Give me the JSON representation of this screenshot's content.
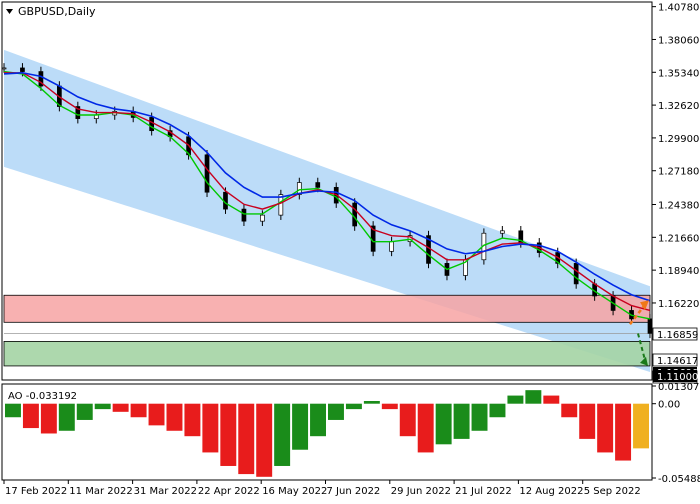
{
  "chart_title": "GBPUSD,Daily",
  "main_price_ticks": [
    "1.40780",
    "1.38060",
    "1.35340",
    "1.32620",
    "1.29900",
    "1.27180",
    "1.24380",
    "1.21660",
    "1.18940",
    "1.16220"
  ],
  "level_labels": {
    "upper": "1.16859",
    "mid": "1.14617",
    "current": "1.13690",
    "lower": "1.13033",
    "target": "1.11000"
  },
  "ao_label": "AO -0.033192",
  "ao_ticks": [
    "0.013076",
    "0.00",
    "-0.054887"
  ],
  "date_labels": [
    "17 Feb 2022",
    "11 Mar 2022",
    "31 Mar 2022",
    "22 Apr 2022",
    "16 May 2022",
    "7 Jun 2022",
    "29 Jun 2022",
    "21 Jul 2022",
    "12 Aug 2022",
    "5 Sep 2022"
  ],
  "colors": {
    "channel": "#bcdcf8",
    "resistance_zone": "#f7a3a3",
    "support_zone": "#a4d4a4",
    "ma_fast": "#00c800",
    "ma_mid": "#c8001e",
    "ma_slow": "#0028e6",
    "ao_up": "#1a8c1a",
    "ao_down": "#e81c1c",
    "ao_last": "#f0b020",
    "price_label_bg": "#000000",
    "axis": "#000000"
  },
  "chart_data": {
    "type": "line",
    "symbol": "GBPUSD",
    "timeframe": "Daily",
    "x_labels": [
      "17 Feb 2022",
      "11 Mar 2022",
      "31 Mar 2022",
      "22 Apr 2022",
      "16 May 2022",
      "7 Jun 2022",
      "29 Jun 2022",
      "21 Jul 2022",
      "12 Aug 2022",
      "5 Sep 2022"
    ],
    "y_range": [
      1.1,
      1.41
    ],
    "price_points": [
      1.357,
      1.354,
      1.342,
      1.325,
      1.315,
      1.318,
      1.321,
      1.316,
      1.305,
      1.3,
      1.285,
      1.254,
      1.24,
      1.23,
      1.235,
      1.252,
      1.262,
      1.258,
      1.245,
      1.226,
      1.205,
      1.213,
      1.218,
      1.195,
      1.185,
      1.198,
      1.22,
      1.222,
      1.212,
      1.204,
      1.195,
      1.178,
      1.168,
      1.156,
      1.149,
      1.137
    ],
    "series": [
      {
        "name": "fast MA",
        "values": [
          1.354,
          1.352,
          1.34,
          1.326,
          1.318,
          1.318,
          1.32,
          1.318,
          1.308,
          1.3,
          1.286,
          1.262,
          1.245,
          1.236,
          1.236,
          1.246,
          1.256,
          1.257,
          1.25,
          1.233,
          1.213,
          1.213,
          1.215,
          1.202,
          1.19,
          1.196,
          1.21,
          1.216,
          1.214,
          1.206,
          1.196,
          1.183,
          1.172,
          1.162,
          1.152,
          1.149
        ]
      },
      {
        "name": "mid MA",
        "values": [
          1.353,
          1.353,
          1.345,
          1.333,
          1.323,
          1.32,
          1.32,
          1.319,
          1.312,
          1.304,
          1.293,
          1.273,
          1.255,
          1.244,
          1.24,
          1.245,
          1.253,
          1.256,
          1.252,
          1.24,
          1.223,
          1.218,
          1.217,
          1.208,
          1.198,
          1.198,
          1.205,
          1.211,
          1.212,
          1.208,
          1.2,
          1.189,
          1.178,
          1.168,
          1.16,
          1.156
        ]
      },
      {
        "name": "slow MA",
        "values": [
          1.352,
          1.353,
          1.35,
          1.342,
          1.333,
          1.327,
          1.323,
          1.321,
          1.317,
          1.31,
          1.301,
          1.287,
          1.27,
          1.258,
          1.25,
          1.25,
          1.253,
          1.255,
          1.254,
          1.247,
          1.235,
          1.227,
          1.222,
          1.215,
          1.207,
          1.203,
          1.205,
          1.209,
          1.211,
          1.21,
          1.205,
          1.196,
          1.186,
          1.177,
          1.169,
          1.164
        ]
      }
    ],
    "channel": {
      "upper": [
        1.372,
        1.176
      ],
      "lower": [
        1.275,
        1.105
      ]
    },
    "levels": [
      1.16859,
      1.14617,
      1.1369,
      1.13033,
      1.11
    ],
    "ao": {
      "title": "AO -0.033192",
      "y_range": [
        -0.054887,
        0.013076
      ],
      "values": [
        -0.01,
        -0.018,
        -0.022,
        -0.02,
        -0.012,
        -0.004,
        -0.006,
        -0.01,
        -0.016,
        -0.02,
        -0.024,
        -0.036,
        -0.046,
        -0.052,
        -0.054,
        -0.046,
        -0.034,
        -0.024,
        -0.012,
        -0.004,
        0.002,
        -0.004,
        -0.024,
        -0.036,
        -0.03,
        -0.026,
        -0.02,
        -0.01,
        0.006,
        0.01,
        0.006,
        -0.01,
        -0.026,
        -0.036,
        -0.042,
        -0.033
      ]
    }
  }
}
